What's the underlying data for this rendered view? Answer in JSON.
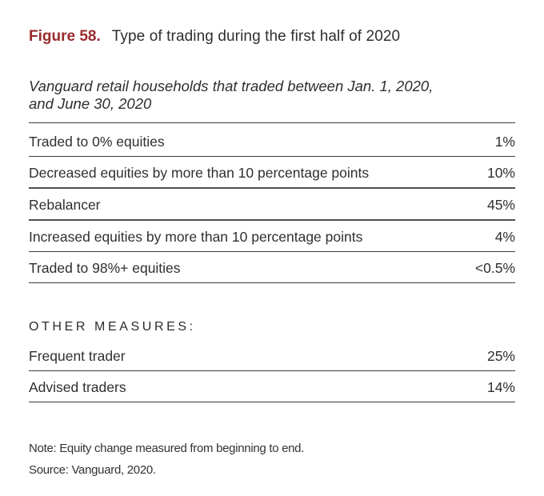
{
  "figure": {
    "label": "Figure 58.",
    "title": "Type of trading during the first half of 2020",
    "subtitle_line1": "Vanguard retail households that traded between Jan. 1, 2020,",
    "subtitle_line2": "and June 30, 2020"
  },
  "table": {
    "rows": [
      {
        "label": "Traded to 0% equities",
        "value": "1%"
      },
      {
        "label": "Decreased equities by more than 10 percentage points",
        "value": "10%"
      },
      {
        "label": "Rebalancer",
        "value": "45%"
      },
      {
        "label": "Increased equities by more than 10 percentage points",
        "value": "4%"
      },
      {
        "label": "Traded to 98%+ equities",
        "value": "<0.5%"
      }
    ]
  },
  "other_measures": {
    "heading": "OTHER MEASURES:",
    "rows": [
      {
        "label": "Frequent trader",
        "value": "25%"
      },
      {
        "label": "Advised traders",
        "value": "14%"
      }
    ]
  },
  "notes": {
    "note_line": "Note: Equity change measured from beginning to end.",
    "source_line": "Source: Vanguard, 2020."
  },
  "colors": {
    "figure_label": "#9a2b2e",
    "body_text": "#2f2f2f",
    "rule_thin": "#3c3c3c",
    "rule_thick": "#4e4e4e"
  }
}
